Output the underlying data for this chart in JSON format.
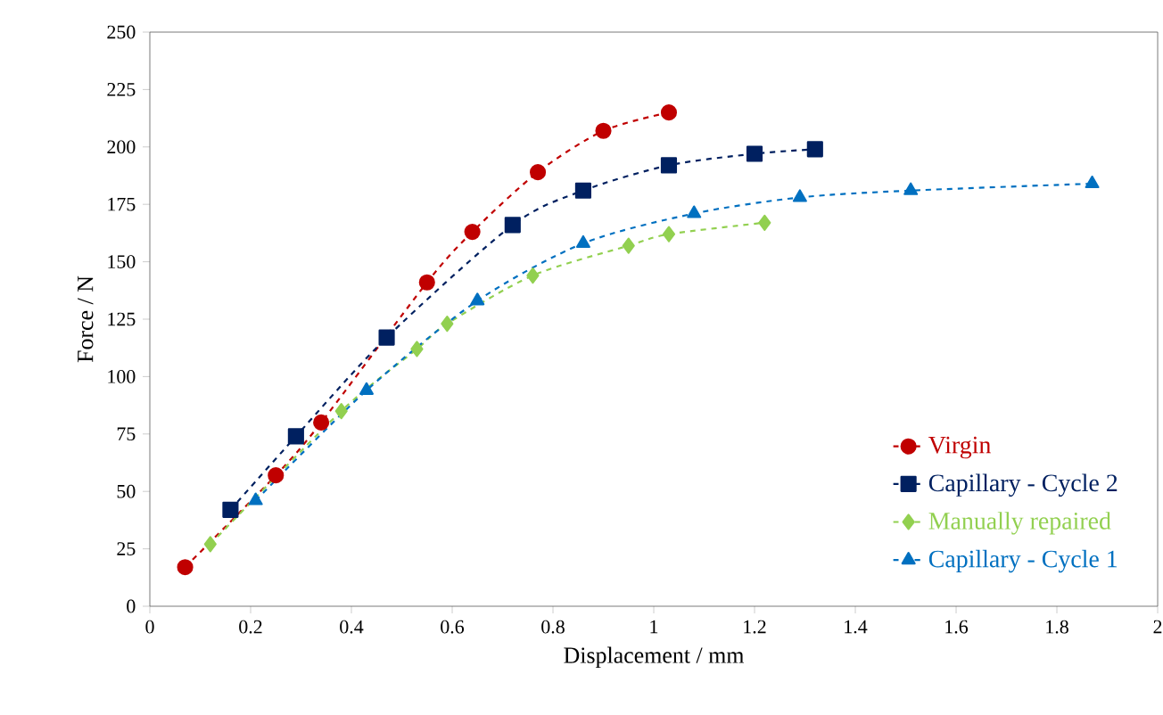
{
  "chart_data": {
    "type": "line",
    "xlabel": "Displacement / mm",
    "ylabel": "Force / N",
    "xlim": [
      0,
      2
    ],
    "ylim": [
      0,
      250
    ],
    "xticks": [
      0,
      0.2,
      0.4,
      0.6,
      0.8,
      1,
      1.2,
      1.4,
      1.6,
      1.8,
      2
    ],
    "yticks": [
      0,
      25,
      50,
      75,
      100,
      125,
      150,
      175,
      200,
      225,
      250
    ],
    "grid": false,
    "legend": "bottom right",
    "line_style": "dashed",
    "series": [
      {
        "name": "Virgin",
        "color": "#c00000",
        "marker": "circle",
        "x": [
          0.07,
          0.25,
          0.34,
          0.55,
          0.64,
          0.77,
          0.9,
          1.03
        ],
        "values": [
          17,
          57,
          80,
          141,
          163,
          189,
          207,
          215
        ]
      },
      {
        "name": "Capillary - Cycle 2",
        "color": "#002060",
        "marker": "square",
        "x": [
          0.16,
          0.29,
          0.47,
          0.72,
          0.86,
          1.03,
          1.2,
          1.32
        ],
        "values": [
          42,
          74,
          117,
          166,
          181,
          192,
          197,
          199
        ]
      },
      {
        "name": "Manually repaired",
        "color": "#92d050",
        "marker": "diamond",
        "x": [
          0.12,
          0.38,
          0.53,
          0.59,
          0.76,
          0.95,
          1.03,
          1.22
        ],
        "values": [
          27,
          85,
          112,
          123,
          144,
          157,
          162,
          167
        ]
      },
      {
        "name": "Capillary - Cycle 1",
        "color": "#0070c0",
        "marker": "triangle",
        "x": [
          0.21,
          0.43,
          0.65,
          0.86,
          1.08,
          1.29,
          1.51,
          1.87
        ],
        "values": [
          46,
          94,
          133,
          158,
          171,
          178,
          181,
          184
        ]
      }
    ]
  }
}
